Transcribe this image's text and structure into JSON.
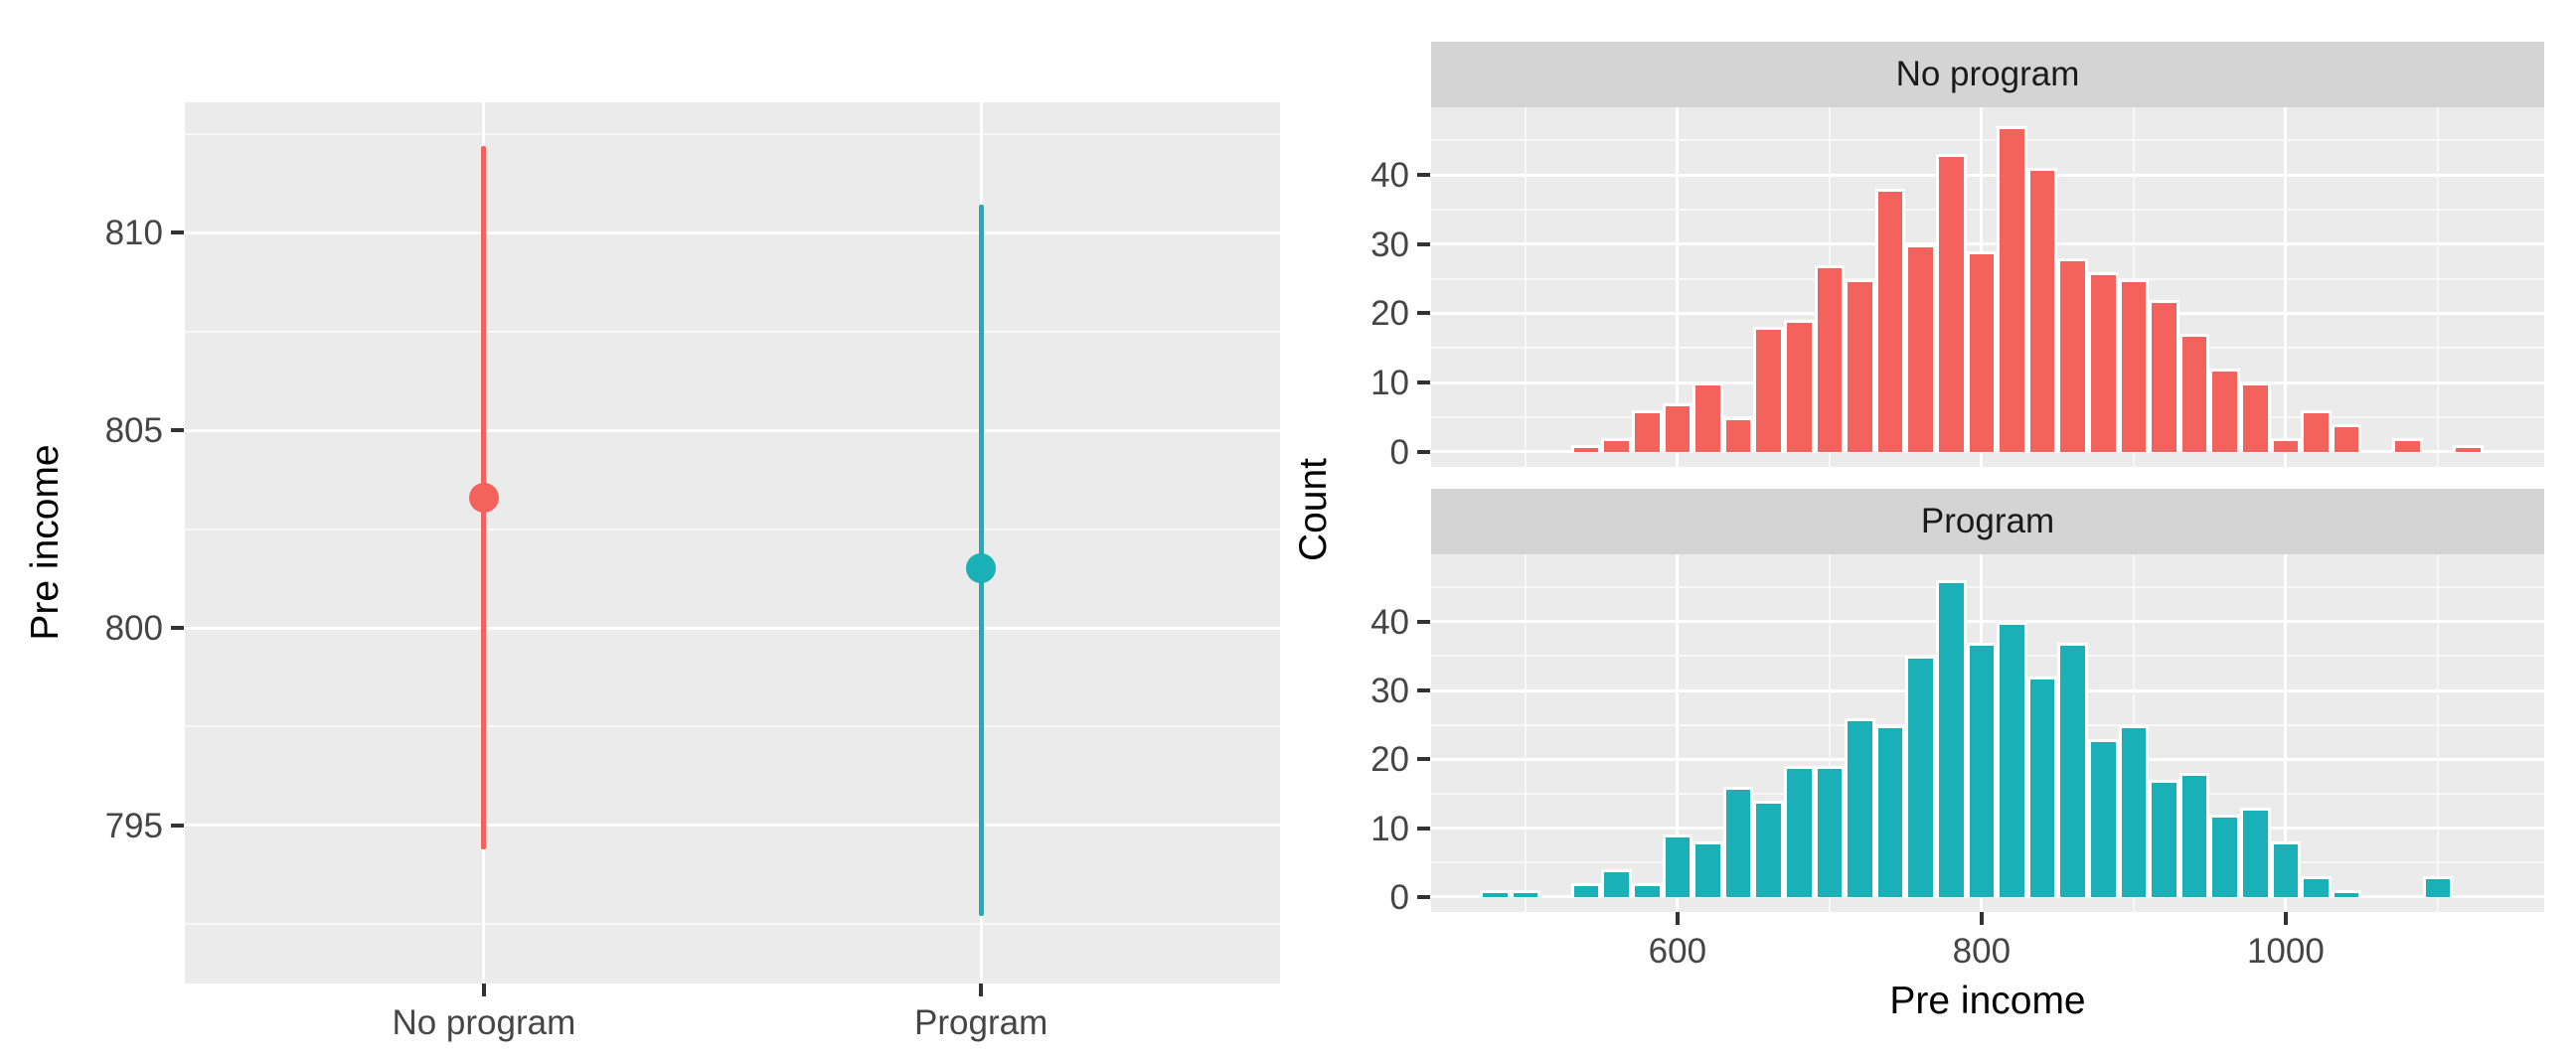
{
  "page": {
    "background": "#FFFFFF",
    "panel_background": "#EBEBEB",
    "strip_background": "#D4D4D4",
    "gridline_color": "#FFFFFF",
    "axis_text_color": "#454545",
    "no_program_color": "#F3625D",
    "program_color": "#19B0B7"
  },
  "chart_data": [
    {
      "type": "scatter",
      "subtype": "pointrange",
      "title": "",
      "xlabel": "",
      "ylabel": "Pre income",
      "categories": [
        "No program",
        "Program"
      ],
      "series": [
        {
          "name": "No program",
          "mean": 803.3,
          "lower": 794.4,
          "upper": 812.2,
          "color": "#F3625D"
        },
        {
          "name": "Program",
          "mean": 801.5,
          "lower": 792.7,
          "upper": 810.7,
          "color": "#19B0B7"
        }
      ],
      "yticks": [
        795,
        800,
        805,
        810
      ],
      "ylim": [
        791.0,
        813.3
      ],
      "grid": "on",
      "legend": "none"
    },
    {
      "type": "bar",
      "subtype": "faceted-histogram",
      "title": "",
      "xlabel": "Pre income",
      "ylabel": "Count",
      "facets": [
        {
          "label": "No program",
          "color": "#F3625D",
          "bin_start": 540,
          "bin_width": 20,
          "counts": [
            1,
            2,
            6,
            7,
            10,
            5,
            18,
            19,
            27,
            25,
            38,
            30,
            43,
            29,
            47,
            41,
            28,
            26,
            25,
            22,
            17,
            12,
            10,
            2,
            6,
            4,
            0,
            2,
            0,
            1
          ]
        },
        {
          "label": "Program",
          "color": "#19B0B7",
          "bin_start": 480,
          "bin_width": 20,
          "counts": [
            1,
            1,
            0,
            2,
            4,
            2,
            9,
            8,
            16,
            14,
            19,
            19,
            26,
            25,
            35,
            46,
            37,
            40,
            32,
            37,
            23,
            25,
            17,
            18,
            12,
            13,
            8,
            3,
            1,
            0,
            0,
            3
          ]
        }
      ],
      "xticks": [
        600,
        800,
        1000
      ],
      "yticks": [
        0,
        10,
        20,
        30,
        40
      ],
      "xlim": [
        438,
        1170
      ],
      "ylim": [
        -2.2,
        49.8
      ],
      "grid": "on",
      "legend": "none"
    }
  ]
}
